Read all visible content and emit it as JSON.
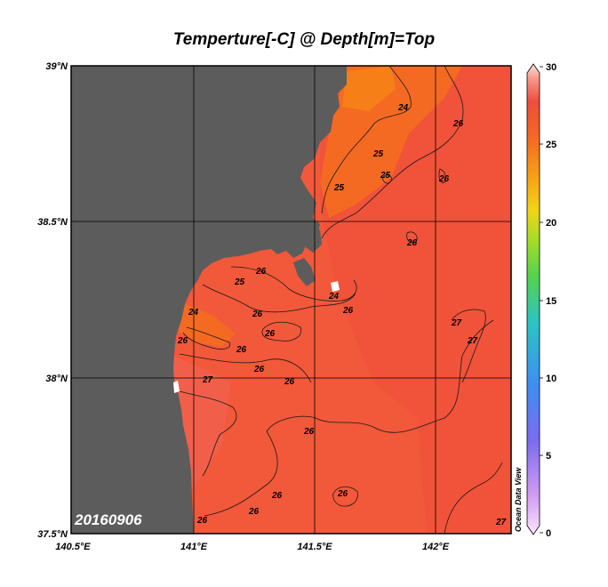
{
  "title": "Temperture[-C] @ Depth[m]=Top",
  "date_label": "20160906",
  "watermark": "Ocean Data View",
  "colors": {
    "land": "#5c5c5c",
    "ocean_base": "#f2583a",
    "ocean_warm": "#ef4b3c",
    "ocean_cool": "#f46a22",
    "grid": "#000000"
  },
  "axes": {
    "lat_labels": [
      "39°N",
      "38.5°N",
      "38°N",
      "37.5°N"
    ],
    "lon_labels": [
      "140.5°E",
      "141°E",
      "141.5°E",
      "142°E"
    ]
  },
  "colorbar": {
    "variable": "Temperature",
    "range": [
      0,
      30
    ],
    "tick_labels": [
      "30",
      "25",
      "20",
      "15",
      "10",
      "5",
      "0"
    ]
  },
  "contour_labels": [
    "24",
    "26",
    "25",
    "25",
    "26",
    "26",
    "24",
    "25",
    "26",
    "26",
    "24",
    "25",
    "26",
    "26",
    "26",
    "26",
    "27",
    "26",
    "26",
    "26",
    "26",
    "27",
    "27",
    "26",
    "26",
    "26",
    "27"
  ]
}
